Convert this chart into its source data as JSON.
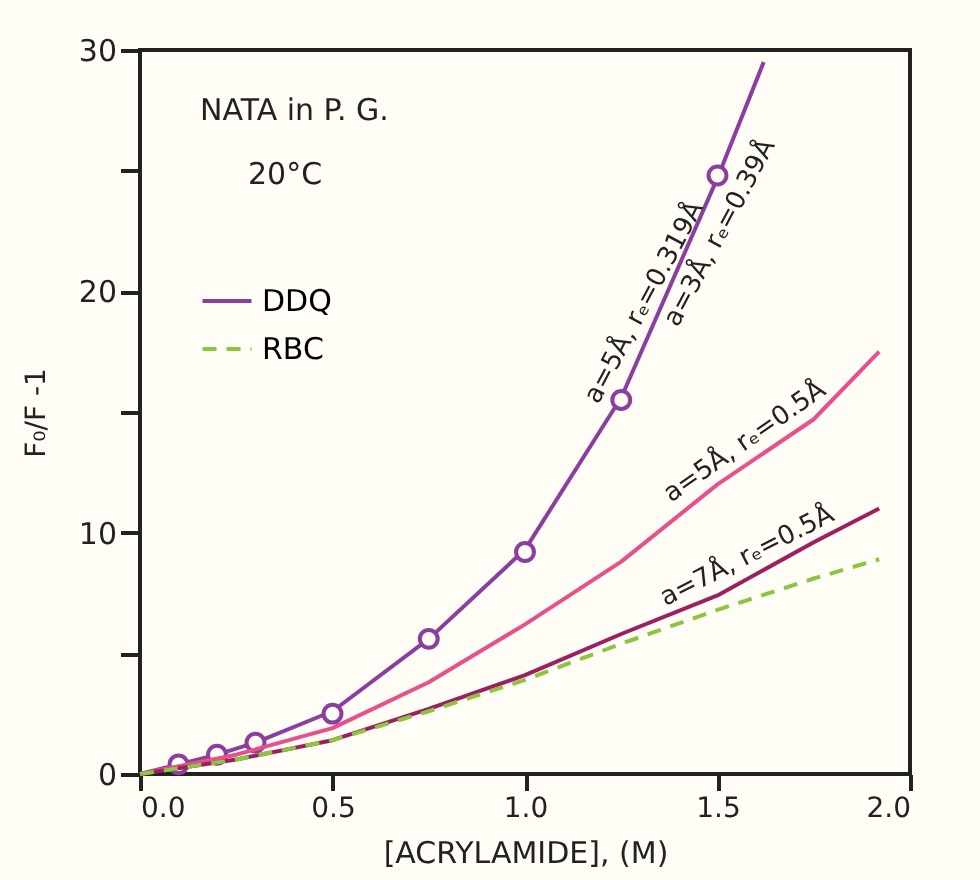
{
  "chart_data": {
    "type": "line",
    "xlabel": "[ACRYLAMIDE], (M)",
    "ylabel": "F₀/F -1",
    "xlim": [
      0,
      2.0
    ],
    "ylim": [
      0,
      30
    ],
    "xticks": [
      {
        "value": 0,
        "label": "0.0"
      },
      0.5,
      {
        "value": 1,
        "label": "1.0"
      },
      1.5,
      {
        "value": 2,
        "label": "2.0"
      }
    ],
    "yticks": [
      0,
      {
        "value": 5,
        "label": null
      },
      10,
      {
        "value": 15,
        "label": null
      },
      20,
      {
        "value": 25,
        "label": null
      },
      30
    ],
    "grid": false,
    "legend": "top left",
    "annotations": [
      "NATA in P. G.",
      "20°C",
      {
        "text": "a=5Å, rₑ=0.319Å",
        "x": 1.35,
        "y": 19.2
      },
      {
        "text": "a=3Å, rₑ=0.39Å",
        "x": 1.45,
        "y": 22.9
      },
      {
        "text": "a=5Å, rₑ=0.5Å",
        "x": 1.6,
        "y": 13.1
      },
      {
        "text": "a=7Å, rₑ=0.5Å",
        "x": 1.6,
        "y": 8.3
      }
    ],
    "series": [
      {
        "name": "DDQ",
        "color": "#8a3fa0",
        "line_style": "solid",
        "x": [
          0,
          0.1,
          0.2,
          0.3,
          0.5,
          0.75,
          1.0,
          1.25,
          1.5,
          1.62
        ],
        "values": [
          0,
          0.4,
          0.8,
          1.3,
          2.6,
          5.6,
          9.3,
          15.6,
          24.7,
          29.5
        ]
      },
      {
        "type": "scatter",
        "marker": "circle",
        "color": "#8a3fa0",
        "x": [
          0.1,
          0.2,
          0.3,
          0.5,
          0.75,
          1.0,
          1.25,
          1.5
        ],
        "values": [
          0.4,
          0.8,
          1.3,
          2.5,
          5.6,
          9.2,
          15.5,
          24.8
        ]
      },
      {
        "color": "#e8508a",
        "line_style": "solid",
        "x": [
          0,
          0.25,
          0.5,
          0.75,
          1.0,
          1.25,
          1.5,
          1.75,
          1.92
        ],
        "values": [
          0,
          0.8,
          1.9,
          3.8,
          6.2,
          8.8,
          12.0,
          14.7,
          17.5
        ]
      },
      {
        "color": "#9c2060",
        "line_style": "solid",
        "x": [
          0,
          0.25,
          0.5,
          0.75,
          1.0,
          1.25,
          1.5,
          1.75,
          1.92
        ],
        "values": [
          0,
          0.6,
          1.4,
          2.7,
          4.1,
          5.8,
          7.4,
          9.6,
          11.0
        ]
      },
      {
        "name": "RBC",
        "color": "#8cc63f",
        "line_style": "dashed",
        "x": [
          0,
          0.25,
          0.5,
          0.75,
          1.0,
          1.25,
          1.5,
          1.75,
          1.92
        ],
        "values": [
          0,
          0.6,
          1.4,
          2.6,
          3.9,
          5.4,
          6.8,
          8.1,
          8.9
        ]
      }
    ]
  }
}
